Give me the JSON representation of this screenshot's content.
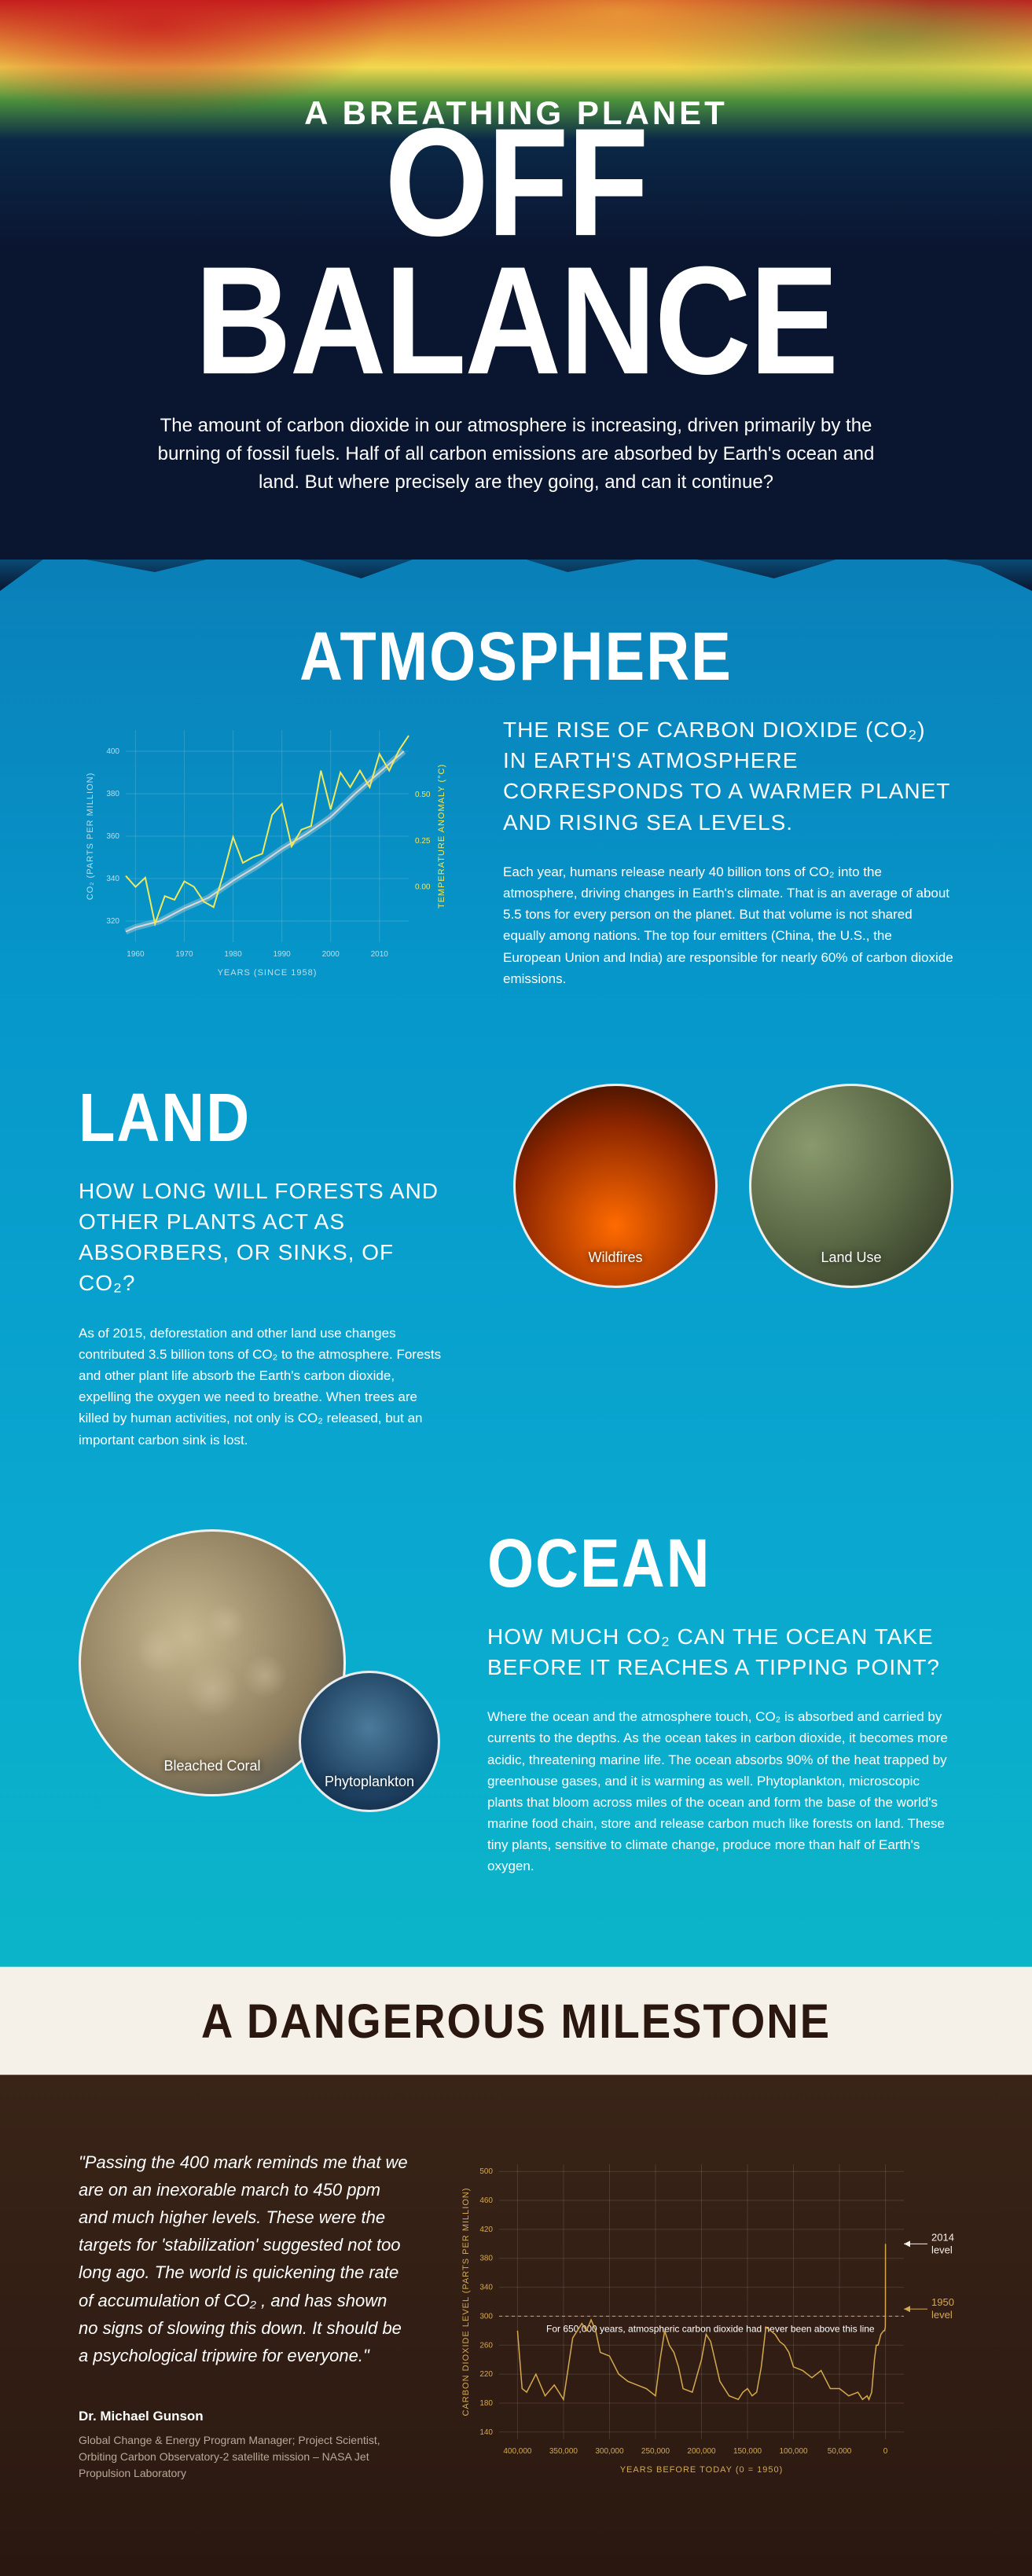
{
  "hero": {
    "kicker": "A BREATHING PLANET",
    "title": "OFF BALANCE",
    "intro": "The amount of carbon dioxide in our atmosphere is increasing, driven primarily by the burning of fossil fuels. Half of all carbon emissions are absorbed by Earth's ocean and land. But where precisely are they going, and can it continue?"
  },
  "atmosphere": {
    "title": "ATMOSPHERE",
    "subhead": "THE RISE OF CARBON DIOXIDE (CO₂) IN EARTH'S ATMOSPHERE CORRESPONDS TO A WARMER PLANET AND RISING SEA LEVELS.",
    "body": "Each year, humans release nearly 40 billion tons of CO₂ into the atmosphere, driving changes in Earth's climate. That is an average of about 5.5 tons for every person on the planet. But that volume is not shared equally among nations. The top four emitters (China, the U.S., the European Union and India) are responsible for nearly 60% of carbon dioxide emissions.",
    "chart": {
      "type": "line",
      "xlabel": "YEARS (SINCE 1958)",
      "ylabel_left": "CO₂ (PARTS PER MILLION)",
      "ylabel_right": "TEMPERATURE ANOMALY (°C)",
      "x_ticks": [
        1960,
        1970,
        1980,
        1990,
        2000,
        2010
      ],
      "y_left_ticks": [
        320,
        340,
        360,
        380,
        400
      ],
      "y_left_lim": [
        310,
        410
      ],
      "y_right_ticks": [
        0.0,
        0.25,
        0.5
      ],
      "y_right_lim": [
        -0.3,
        0.85
      ],
      "grid_color": "rgba(255,255,255,0.15)",
      "co2_series": {
        "color": "#d8d8d8",
        "width": 2,
        "x": [
          1958,
          1960,
          1965,
          1970,
          1975,
          1980,
          1985,
          1990,
          1995,
          2000,
          2005,
          2010,
          2015
        ],
        "y": [
          315,
          317,
          320,
          326,
          331,
          339,
          346,
          354,
          361,
          369,
          380,
          390,
          400
        ]
      },
      "co2_band_color": "rgba(220,220,220,0.35)",
      "co2_band_width": 8,
      "temp_series": {
        "color": "#f2e85c",
        "width": 2,
        "x": [
          1958,
          1960,
          1962,
          1964,
          1966,
          1968,
          1970,
          1972,
          1974,
          1976,
          1978,
          1980,
          1982,
          1984,
          1986,
          1988,
          1990,
          1992,
          1994,
          1996,
          1998,
          2000,
          2002,
          2004,
          2006,
          2008,
          2010,
          2012,
          2014,
          2016
        ],
        "y": [
          0.06,
          0.0,
          0.05,
          -0.2,
          -0.05,
          -0.07,
          0.03,
          0.0,
          -0.08,
          -0.11,
          0.07,
          0.27,
          0.13,
          0.16,
          0.18,
          0.39,
          0.45,
          0.22,
          0.31,
          0.33,
          0.63,
          0.42,
          0.62,
          0.54,
          0.63,
          0.54,
          0.72,
          0.63,
          0.74,
          0.82
        ]
      },
      "label_fontsize": 11,
      "tick_fontsize": 10
    }
  },
  "land": {
    "title": "LAND",
    "subhead": "HOW LONG WILL FORESTS AND OTHER PLANTS ACT AS ABSORBERS, OR SINKS, OF CO₂?",
    "body": "As of 2015, deforestation and other land use changes contributed 3.5 billion tons of CO₂ to the atmosphere. Forests and other plant life absorb the Earth's carbon dioxide, expelling the oxygen we need to breathe. When trees are killed by human activities, not only is CO₂ released, but an important carbon sink is lost.",
    "circles": {
      "wildfires": "Wildfires",
      "landuse": "Land Use"
    }
  },
  "ocean": {
    "title": "OCEAN",
    "subhead": "HOW MUCH CO₂ CAN THE OCEAN TAKE BEFORE IT REACHES A TIPPING POINT?",
    "body": "Where the ocean and the atmosphere touch, CO₂ is absorbed and carried by currents to the depths. As the ocean takes in carbon dioxide, it becomes more acidic, threatening marine life. The ocean absorbs 90% of the heat trapped by greenhouse gases, and it is warming as well. Phytoplankton, microscopic plants that bloom across miles of the ocean and form the base of the world's marine food chain, store and release carbon much like forests on land. These tiny plants, sensitive to climate change, produce more than half of Earth's oxygen.",
    "circles": {
      "coral": "Bleached Coral",
      "phyto": "Phytoplankton"
    }
  },
  "milestone": {
    "banner": "A DANGEROUS MILESTONE",
    "quote": "\"Passing the 400 mark reminds me that we are on an inexorable march to 450 ppm and much higher levels. These were the targets for 'stabilization' suggested not too long ago. The world is quickening the rate of accumulation of CO₂ , and has shown no signs of slowing this down. It should be a psychological tripwire for everyone.\"",
    "author": "Dr. Michael Gunson",
    "author_title": "Global Change & Energy Program Manager; Project Scientist, Orbiting Carbon Observatory-2 satellite mission – NASA Jet Propulsion Laboratory",
    "chart": {
      "type": "line",
      "xlabel": "YEARS BEFORE TODAY (0 = 1950)",
      "ylabel": "CARBON DIOXIDE LEVEL (PARTS PER MILLION)",
      "x_ticks": [
        400000,
        350000,
        300000,
        250000,
        200000,
        150000,
        100000,
        50000,
        0
      ],
      "x_lim": [
        420000,
        -20000
      ],
      "y_ticks": [
        140,
        180,
        220,
        260,
        300,
        340,
        380,
        420,
        460,
        500
      ],
      "y_lim": [
        130,
        510
      ],
      "series_color": "#d4a94e",
      "series_width": 1.5,
      "grid_color": "rgba(255,255,255,0.12)",
      "threshold_y": 300,
      "threshold_label": "For 650,000 years, atmospheric carbon dioxide had never been above this line",
      "annotation_2014": {
        "label": "2014 level",
        "y": 400
      },
      "annotation_1950": {
        "label": "1950 level",
        "y": 310
      },
      "annotation_color": "#f5f0e8",
      "series": {
        "x": [
          400000,
          395000,
          390000,
          380000,
          370000,
          360000,
          350000,
          340000,
          330000,
          325000,
          320000,
          315000,
          310000,
          300000,
          290000,
          280000,
          270000,
          260000,
          250000,
          245000,
          240000,
          235000,
          230000,
          225000,
          220000,
          210000,
          200000,
          195000,
          190000,
          180000,
          170000,
          160000,
          155000,
          150000,
          145000,
          140000,
          135000,
          130000,
          125000,
          120000,
          115000,
          110000,
          105000,
          100000,
          90000,
          80000,
          70000,
          60000,
          50000,
          40000,
          30000,
          25000,
          20000,
          18000,
          15000,
          12000,
          10000,
          8000,
          5000,
          2000,
          1000,
          200,
          100,
          60,
          30,
          0
        ],
        "y": [
          280,
          200,
          195,
          220,
          190,
          205,
          185,
          270,
          290,
          280,
          295,
          280,
          250,
          245,
          220,
          210,
          205,
          200,
          190,
          240,
          280,
          260,
          250,
          230,
          200,
          195,
          240,
          275,
          265,
          210,
          190,
          185,
          195,
          200,
          190,
          195,
          230,
          285,
          280,
          275,
          265,
          260,
          250,
          230,
          225,
          215,
          225,
          200,
          200,
          190,
          195,
          185,
          190,
          185,
          195,
          240,
          260,
          260,
          275,
          280,
          280,
          285,
          300,
          320,
          360,
          400
        ]
      }
    }
  },
  "colors": {
    "text_white": "#ffffff",
    "ocean_bg": "#0697ca",
    "dark_bg": "#2a1810",
    "banner_bg": "#f5f0e8"
  }
}
